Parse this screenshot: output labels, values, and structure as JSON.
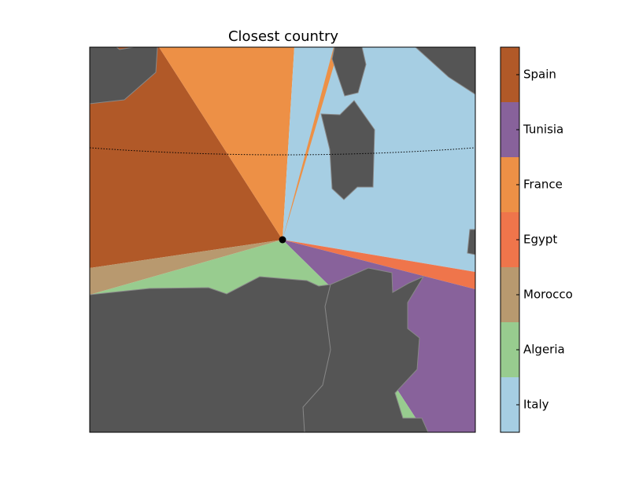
{
  "title": "Closest country",
  "legend": [
    {
      "label": "Spain",
      "color": "#b15928"
    },
    {
      "label": "Tunisia",
      "color": "#88629b"
    },
    {
      "label": "France",
      "color": "#ed9046"
    },
    {
      "label": "Egypt",
      "color": "#ef754b"
    },
    {
      "label": "Morocco",
      "color": "#b8996f"
    },
    {
      "label": "Algeria",
      "color": "#98cc8f"
    },
    {
      "label": "Italy",
      "color": "#a6cee3"
    }
  ]
}
